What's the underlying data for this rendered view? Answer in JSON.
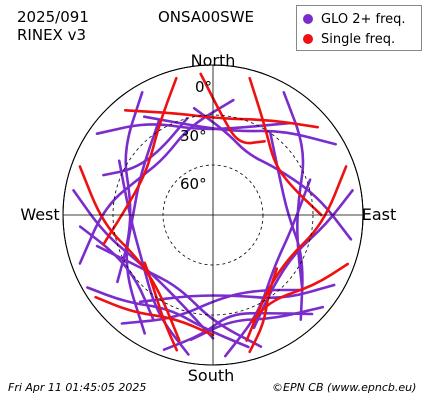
{
  "header": {
    "date": "2025/091",
    "format": "RINEX v3",
    "station": "ONSA00SWE"
  },
  "legend": {
    "items": [
      {
        "label": "GLO 2+ freq.",
        "color": "#7b2ccc"
      },
      {
        "label": "Single freq.",
        "color": "#ee1111"
      }
    ]
  },
  "footer": {
    "timestamp": "Fri Apr 11 01:45:05 2025",
    "credit": "©EPN CB (www.epncb.eu)"
  },
  "chart_data": {
    "type": "line",
    "projection": "polar sky plot",
    "directions": {
      "north": "North",
      "south": "South",
      "east": "East",
      "west": "West"
    },
    "elevation_ticks": [
      "0°",
      "30°",
      "60°"
    ],
    "elevation_rings": [
      0,
      30,
      60
    ],
    "center_hole_elevation": 35,
    "series": [
      {
        "name": "GLO 2+ freq.",
        "color": "#7b2ccc",
        "tracks": [
          {
            "az": [
              250,
              275,
              300,
              320,
              345,
              10
            ],
            "el": [
              5,
              25,
              42,
              45,
              35,
              20
            ]
          },
          {
            "az": [
              210,
              240,
              270,
              300,
              330
            ],
            "el": [
              8,
              28,
              42,
              40,
              25
            ]
          },
          {
            "az": [
              100,
              80,
              55,
              30,
              10,
              350
            ],
            "el": [
              6,
              26,
              42,
              48,
              40,
              25
            ]
          },
          {
            "az": [
              140,
              115,
              90,
              60,
              35
            ],
            "el": [
              8,
              30,
              45,
              44,
              30
            ]
          },
          {
            "az": [
              175,
              155,
              130,
              100,
              70
            ],
            "el": [
              5,
              25,
              42,
              42,
              28
            ]
          },
          {
            "az": [
              190,
              210,
              240,
              270,
              300
            ],
            "el": [
              5,
              22,
              40,
              40,
              25
            ]
          },
          {
            "az": [
              305,
              325,
              350,
              15,
              40
            ],
            "el": [
              5,
              22,
              38,
              36,
              18
            ]
          },
          {
            "az": [
              60,
              40,
              15,
              350,
              325
            ],
            "el": [
              5,
              24,
              38,
              36,
              18
            ]
          },
          {
            "az": [
              220,
              200,
              175,
              150,
              130
            ],
            "el": [
              5,
              24,
              40,
              38,
              20
            ]
          },
          {
            "az": [
              160,
              180,
              205,
              230,
              255
            ],
            "el": [
              6,
              26,
              42,
              38,
              18
            ]
          },
          {
            "az": [
              120,
              140,
              165,
              195,
              220
            ],
            "el": [
              6,
              24,
              40,
              40,
              22
            ]
          },
          {
            "az": [
              280,
              260,
              235,
              205,
              180
            ],
            "el": [
              5,
              24,
              38,
              36,
              16
            ]
          },
          {
            "az": [
              330,
              305,
              280,
              255,
              235
            ],
            "el": [
              5,
              24,
              40,
              38,
              20
            ]
          },
          {
            "az": [
              30,
              55,
              80,
              105,
              130
            ],
            "el": [
              5,
              22,
              38,
              38,
              20
            ]
          },
          {
            "az": [
              200,
              185,
              170,
              150,
              135
            ],
            "el": [
              4,
              18,
              30,
              22,
              6
            ]
          },
          {
            "az": [
              240,
              225,
              205,
              185,
              165
            ],
            "el": [
              3,
              16,
              28,
              22,
              8
            ]
          },
          {
            "az": [
              265,
              250,
              230,
              210
            ],
            "el": [
              10,
              26,
              30,
              18
            ]
          },
          {
            "az": [
              130,
              150,
              170,
              190
            ],
            "el": [
              4,
              18,
              26,
              14
            ]
          },
          {
            "az": [
              80,
              95,
              115,
              140,
              160
            ],
            "el": [
              5,
              22,
              36,
              34,
              18
            ]
          },
          {
            "az": [
              290,
              300,
              320,
              345
            ],
            "el": [
              20,
              35,
              40,
              30
            ]
          }
        ]
      },
      {
        "name": "Single freq.",
        "color": "#ee1111",
        "tracks": [
          {
            "az": [
              15,
              30,
              50,
              70,
              90
            ],
            "el": [
              5,
              28,
              42,
              40,
              25
            ]
          },
          {
            "az": [
              345,
              330,
              305,
              280,
              255
            ],
            "el": [
              5,
              26,
              42,
              40,
              22
            ]
          },
          {
            "az": [
              70,
              95,
              120,
              145,
              165
            ],
            "el": [
              5,
              24,
              38,
              34,
              12
            ]
          },
          {
            "az": [
              290,
              265,
              240,
              215,
              195
            ],
            "el": [
              5,
              24,
              38,
              34,
              12
            ]
          },
          {
            "az": [
              165,
              155,
              145,
              130
            ],
            "el": [
              5,
              18,
              32,
              40
            ]
          },
          {
            "az": [
              195,
              205,
              220,
              235
            ],
            "el": [
              6,
              20,
              34,
              40
            ]
          },
          {
            "az": [
              355,
              5,
              20,
              35
            ],
            "el": [
              5,
              30,
              45,
              36
            ]
          },
          {
            "az": [
              235,
              220,
              200,
              180
            ],
            "el": [
              4,
              14,
              24,
              18
            ]
          },
          {
            "az": [
              110,
              125,
              145,
              160
            ],
            "el": [
              4,
              16,
              28,
              22
            ]
          },
          {
            "az": [
              320,
              340,
              5,
              30,
              50
            ],
            "el": [
              8,
              25,
              32,
              24,
              8
            ]
          }
        ]
      }
    ]
  }
}
